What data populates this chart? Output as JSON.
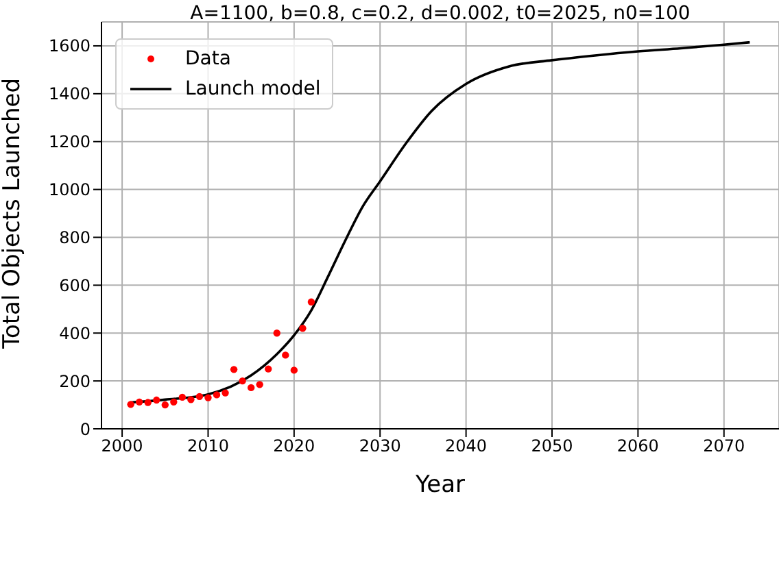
{
  "chart_data": {
    "type": "scatter",
    "title": "A=1100, b=0.8, c=0.2, d=0.002, t0=2025, n0=100",
    "xlabel": "Year",
    "ylabel": "Total Objects Launched",
    "series": [
      {
        "name": "Data",
        "color": "#ff0000",
        "marker": "circle",
        "x": [
          2001,
          2002,
          2003,
          2004,
          2005,
          2006,
          2007,
          2008,
          2009,
          2010,
          2011,
          2012,
          2013,
          2014,
          2015,
          2016,
          2017,
          2018,
          2019,
          2020,
          2021,
          2022
        ],
        "values": [
          102,
          112,
          110,
          120,
          100,
          112,
          132,
          122,
          135,
          130,
          142,
          150,
          248,
          200,
          172,
          185,
          250,
          400,
          308,
          245,
          420,
          530
        ]
      },
      {
        "name": "Launch model",
        "type": "line",
        "color": "#000000",
        "marker": "none",
        "line_style": "solid",
        "x": [
          2001,
          2005,
          2010,
          2015,
          2018,
          2020,
          2022,
          2024,
          2026,
          2028,
          2030,
          2033,
          2036,
          2040,
          2045,
          2050,
          2055,
          2060,
          2065,
          2070,
          2073
        ],
        "values": [
          110,
          122,
          144,
          223,
          312,
          391,
          495,
          640,
          790,
          930,
          1034,
          1192,
          1328,
          1441,
          1514,
          1540,
          1560,
          1577,
          1590,
          1605,
          1615
        ]
      }
    ],
    "xlim": [
      1997.6,
      2076.4
    ],
    "xticks": [
      2000,
      2010,
      2020,
      2030,
      2040,
      2050,
      2060,
      2070
    ],
    "ylim": [
      0,
      1700
    ],
    "yticks": [
      0,
      200,
      400,
      600,
      800,
      1000,
      1200,
      1400,
      1600
    ],
    "grid": true,
    "legend": "top left"
  }
}
